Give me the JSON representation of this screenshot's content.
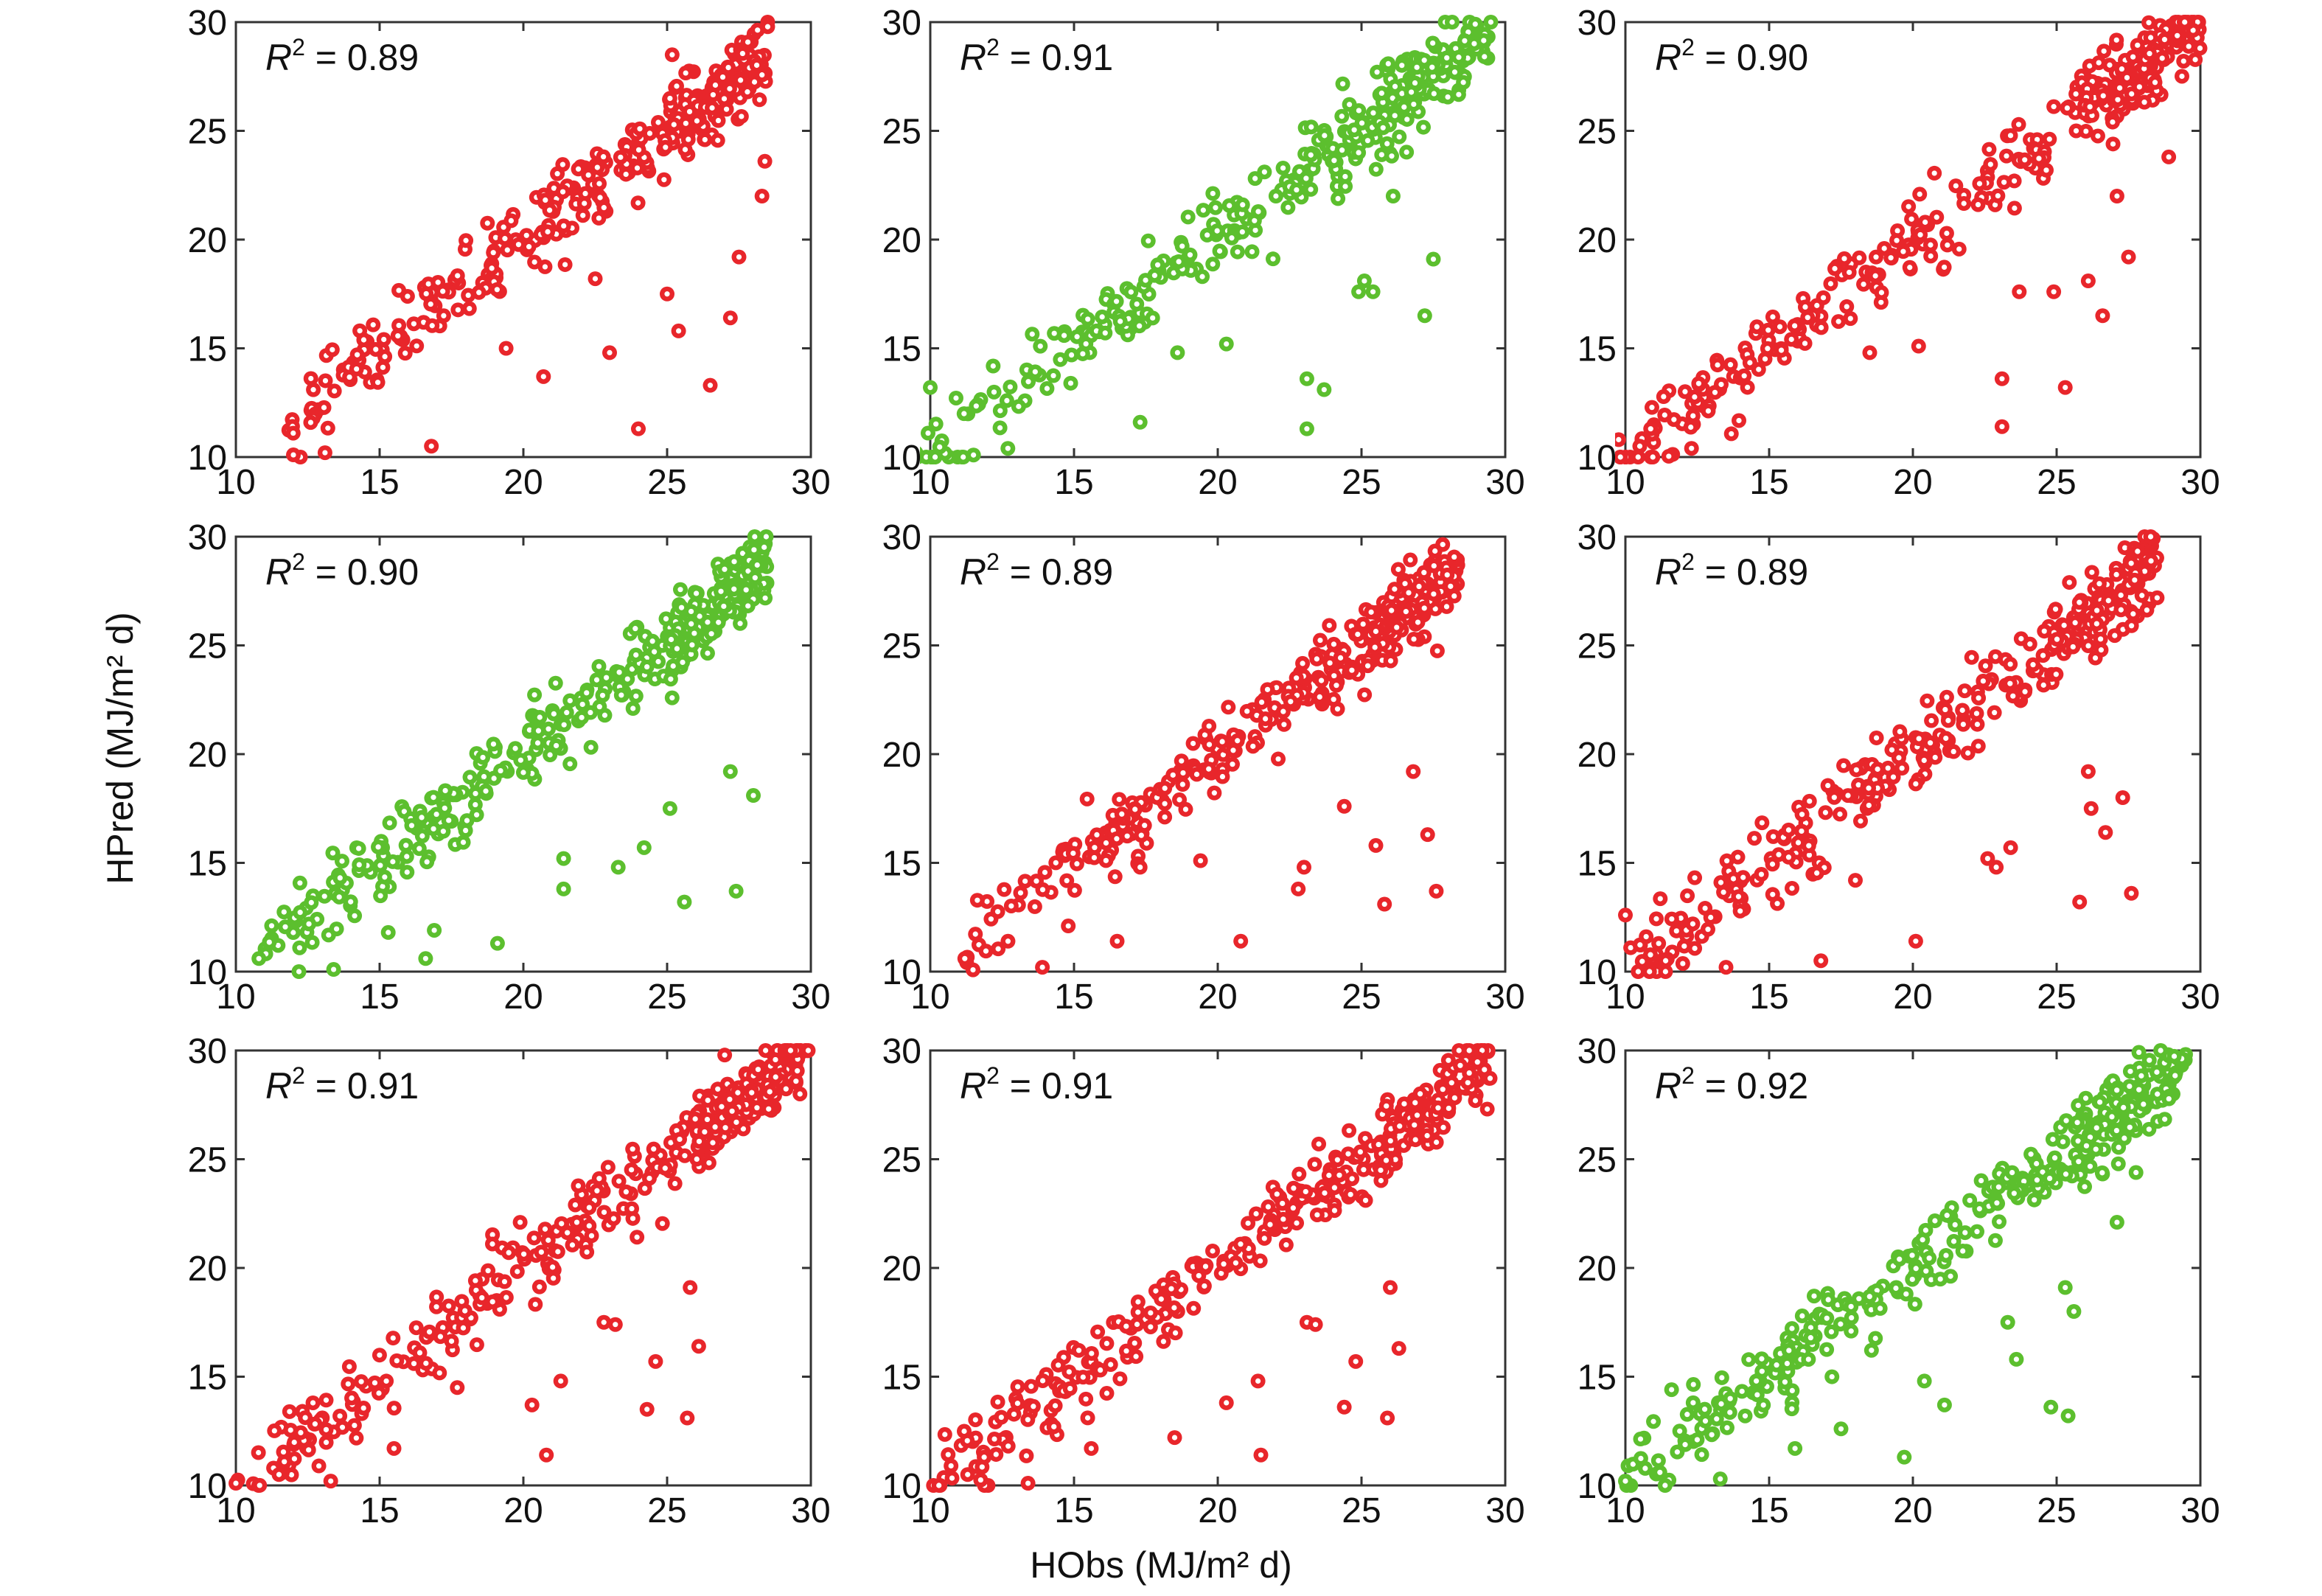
{
  "figure": {
    "xlabel": "HObs (MJ/m² d)",
    "ylabel": "HPred (MJ/m² d)",
    "r2_prefix": "R",
    "r2_sup": "2",
    "r2_eq": " = "
  },
  "colors": {
    "red": "#e8262b",
    "green": "#5cbf2e"
  },
  "chart_data": [
    {
      "type": "scatter",
      "row": 0,
      "col": 0,
      "r2": "0.89",
      "color": "red",
      "xlim": [
        10,
        30
      ],
      "ylim": [
        10,
        30
      ],
      "xticks": [
        10,
        15,
        20,
        25,
        30
      ],
      "yticks": [
        10,
        15,
        20,
        25,
        30
      ],
      "xticklabels": [
        "10",
        "15",
        "20",
        "25",
        "30"
      ],
      "yticklabels": [
        "10",
        "15",
        "20",
        "25",
        "30"
      ],
      "x_range": [
        11.5,
        28.5
      ],
      "outliers": [
        [
          24,
          11.3
        ],
        [
          23,
          14.8
        ],
        [
          26.5,
          13.3
        ],
        [
          25,
          17.5
        ],
        [
          27.5,
          19.2
        ],
        [
          28.4,
          23.6
        ],
        [
          28.3,
          22
        ],
        [
          27.2,
          16.4
        ],
        [
          25.4,
          15.8
        ],
        [
          22.5,
          18.2
        ],
        [
          20.7,
          13.7
        ],
        [
          19.4,
          15
        ],
        [
          16.8,
          10.5
        ],
        [
          12,
          10.1
        ],
        [
          13.1,
          10.2
        ]
      ],
      "seed": 11
    },
    {
      "type": "scatter",
      "row": 0,
      "col": 1,
      "r2": "0.91",
      "color": "green",
      "xlim": [
        10,
        30
      ],
      "ylim": [
        10,
        30
      ],
      "xticks": [
        10,
        15,
        20,
        25,
        30
      ],
      "yticks": [
        10,
        15,
        20,
        25,
        30
      ],
      "xticklabels": [
        "10",
        "15",
        "20",
        "25",
        "30"
      ],
      "yticklabels": [
        "10",
        "15",
        "20",
        "25",
        "30"
      ],
      "x_range": [
        9.5,
        29.5
      ],
      "outliers": [
        [
          9.5,
          10.2
        ],
        [
          10,
          13.2
        ],
        [
          12.7,
          10.4
        ],
        [
          23.1,
          11.3
        ],
        [
          23.7,
          13.1
        ],
        [
          23.1,
          13.6
        ],
        [
          25.4,
          17.6
        ],
        [
          25.1,
          18.1
        ],
        [
          27.2,
          16.5
        ],
        [
          27.5,
          19.1
        ],
        [
          26.1,
          22
        ],
        [
          24.9,
          17.6
        ],
        [
          20.3,
          15.2
        ],
        [
          18.6,
          14.8
        ],
        [
          17.3,
          11.6
        ]
      ],
      "seed": 23
    },
    {
      "type": "scatter",
      "row": 0,
      "col": 2,
      "r2": "0.90",
      "color": "red",
      "xlim": [
        10,
        30
      ],
      "ylim": [
        10,
        30
      ],
      "xticks": [
        10,
        15,
        20,
        25,
        30
      ],
      "yticks": [
        10,
        15,
        20,
        25,
        30
      ],
      "xticklabels": [
        "10",
        "15",
        "20",
        "25",
        "30"
      ],
      "yticklabels": [
        "10",
        "15",
        "20",
        "25",
        "30"
      ],
      "x_range": [
        8.5,
        30
      ],
      "outliers": [
        [
          8.5,
          10.2
        ],
        [
          10.5,
          10.5
        ],
        [
          12.3,
          10.4
        ],
        [
          23.1,
          11.4
        ],
        [
          23.1,
          13.6
        ],
        [
          25.3,
          13.2
        ],
        [
          26.6,
          16.5
        ],
        [
          27.5,
          19.2
        ],
        [
          23.7,
          17.6
        ],
        [
          24.9,
          17.6
        ],
        [
          26.1,
          18.1
        ],
        [
          27.1,
          22
        ],
        [
          28.9,
          23.8
        ],
        [
          20.2,
          15.1
        ],
        [
          18.5,
          14.8
        ]
      ],
      "seed": 37
    },
    {
      "type": "scatter",
      "row": 1,
      "col": 0,
      "r2": "0.90",
      "color": "green",
      "xlim": [
        10,
        30
      ],
      "ylim": [
        10,
        30
      ],
      "xticks": [
        10,
        15,
        20,
        25,
        30
      ],
      "yticks": [
        10,
        15,
        20,
        25,
        30
      ],
      "xticklabels": [
        "10",
        "15",
        "20",
        "25",
        "30"
      ],
      "yticklabels": [
        "10",
        "15",
        "20",
        "25",
        "30"
      ],
      "x_range": [
        10.8,
        28.5
      ],
      "outliers": [
        [
          13.4,
          10.1
        ],
        [
          10.8,
          10.6
        ],
        [
          15.3,
          11.8
        ],
        [
          16.6,
          10.6
        ],
        [
          16.9,
          11.9
        ],
        [
          19.1,
          11.3
        ],
        [
          21.4,
          13.8
        ],
        [
          25.6,
          13.2
        ],
        [
          27.4,
          13.7
        ],
        [
          24.2,
          15.7
        ],
        [
          23.3,
          14.8
        ],
        [
          25.1,
          17.5
        ],
        [
          27.2,
          19.2
        ],
        [
          28,
          18.1
        ],
        [
          21.4,
          15.2
        ]
      ],
      "seed": 41
    },
    {
      "type": "scatter",
      "row": 1,
      "col": 1,
      "r2": "0.89",
      "color": "red",
      "xlim": [
        10,
        30
      ],
      "ylim": [
        10,
        30
      ],
      "xticks": [
        10,
        15,
        20,
        25,
        30
      ],
      "yticks": [
        10,
        15,
        20,
        25,
        30
      ],
      "xticklabels": [
        "10",
        "15",
        "20",
        "25",
        "30"
      ],
      "yticklabels": [
        "10",
        "15",
        "20",
        "25",
        "30"
      ],
      "x_range": [
        11,
        28.5
      ],
      "outliers": [
        [
          11.2,
          10.6
        ],
        [
          13.9,
          10.2
        ],
        [
          16.5,
          11.4
        ],
        [
          20.8,
          11.4
        ],
        [
          24.4,
          17.6
        ],
        [
          25.5,
          15.8
        ],
        [
          25.8,
          13.1
        ],
        [
          26.8,
          19.2
        ],
        [
          27.3,
          16.3
        ],
        [
          27.6,
          13.7
        ],
        [
          22.8,
          13.8
        ],
        [
          23,
          14.8
        ],
        [
          19.4,
          15.1
        ],
        [
          17.3,
          14.8
        ],
        [
          14.8,
          12.1
        ]
      ],
      "seed": 53
    },
    {
      "type": "scatter",
      "row": 1,
      "col": 2,
      "r2": "0.89",
      "color": "red",
      "xlim": [
        10,
        30
      ],
      "ylim": [
        10,
        30
      ],
      "xticks": [
        10,
        15,
        20,
        25,
        30
      ],
      "yticks": [
        10,
        15,
        20,
        25,
        30
      ],
      "xticklabels": [
        "10",
        "15",
        "20",
        "25",
        "30"
      ],
      "yticklabels": [
        "10",
        "15",
        "20",
        "25",
        "30"
      ],
      "x_range": [
        10,
        28.5
      ],
      "outliers": [
        [
          10,
          12.6
        ],
        [
          11.4,
          10.5
        ],
        [
          13.5,
          10.2
        ],
        [
          16.8,
          10.5
        ],
        [
          20.1,
          11.4
        ],
        [
          22.6,
          15.2
        ],
        [
          23.4,
          15.7
        ],
        [
          25.8,
          13.2
        ],
        [
          26.2,
          17.5
        ],
        [
          26.7,
          16.4
        ],
        [
          27.3,
          18
        ],
        [
          27.6,
          13.6
        ],
        [
          26.1,
          19.2
        ],
        [
          22.9,
          14.8
        ],
        [
          18,
          14.2
        ]
      ],
      "seed": 67
    },
    {
      "type": "scatter",
      "row": 2,
      "col": 0,
      "r2": "0.91",
      "color": "red",
      "xlim": [
        10,
        30
      ],
      "ylim": [
        10,
        30
      ],
      "xticks": [
        10,
        15,
        20,
        25,
        30
      ],
      "yticks": [
        10,
        15,
        20,
        25,
        30
      ],
      "xticklabels": [
        "10",
        "15",
        "20",
        "25",
        "30"
      ],
      "yticklabels": [
        "10",
        "15",
        "20",
        "25",
        "30"
      ],
      "x_range": [
        10,
        30
      ],
      "outliers": [
        [
          10,
          10.1
        ],
        [
          11.5,
          10.5
        ],
        [
          13.3,
          10.2
        ],
        [
          20.8,
          11.4
        ],
        [
          22.8,
          17.5
        ],
        [
          23.2,
          17.4
        ],
        [
          24.3,
          13.5
        ],
        [
          24.6,
          15.7
        ],
        [
          25.7,
          13.1
        ],
        [
          25.8,
          19.1
        ],
        [
          26.1,
          16.4
        ],
        [
          21.3,
          14.8
        ],
        [
          20.3,
          13.7
        ],
        [
          17.7,
          14.5
        ],
        [
          15.5,
          11.7
        ]
      ],
      "seed": 79
    },
    {
      "type": "scatter",
      "row": 2,
      "col": 1,
      "r2": "0.91",
      "color": "red",
      "xlim": [
        10,
        30
      ],
      "ylim": [
        10,
        30
      ],
      "xticks": [
        10,
        15,
        20,
        25,
        30
      ],
      "yticks": [
        10,
        15,
        20,
        25,
        30
      ],
      "xticklabels": [
        "10",
        "15",
        "20",
        "25",
        "30"
      ],
      "yticklabels": [
        "10",
        "15",
        "20",
        "25",
        "30"
      ],
      "x_range": [
        10,
        29.5
      ],
      "outliers": [
        [
          11.3,
          10.5
        ],
        [
          13.4,
          10.1
        ],
        [
          21.5,
          11.4
        ],
        [
          23.1,
          17.5
        ],
        [
          23.4,
          17.4
        ],
        [
          24.4,
          13.6
        ],
        [
          24.8,
          15.7
        ],
        [
          25.9,
          13.1
        ],
        [
          26,
          19.1
        ],
        [
          26.3,
          16.3
        ],
        [
          21.4,
          14.8
        ],
        [
          20.3,
          13.8
        ],
        [
          18.5,
          12.2
        ],
        [
          15.6,
          11.7
        ],
        [
          14.3,
          12.7
        ]
      ],
      "seed": 97
    },
    {
      "type": "scatter",
      "row": 2,
      "col": 2,
      "r2": "0.92",
      "color": "green",
      "xlim": [
        10,
        30
      ],
      "ylim": [
        10,
        30
      ],
      "xticks": [
        10,
        15,
        20,
        25,
        30
      ],
      "yticks": [
        10,
        15,
        20,
        25,
        30
      ],
      "xticklabels": [
        "10",
        "15",
        "20",
        "25",
        "30"
      ],
      "yticklabels": [
        "10",
        "15",
        "20",
        "25",
        "30"
      ],
      "x_range": [
        10,
        29.5
      ],
      "outliers": [
        [
          10,
          10.2
        ],
        [
          11.2,
          10.6
        ],
        [
          13.3,
          10.3
        ],
        [
          19.7,
          11.3
        ],
        [
          21.1,
          13.7
        ],
        [
          23.3,
          17.5
        ],
        [
          23.6,
          15.8
        ],
        [
          24.8,
          13.6
        ],
        [
          25.3,
          19.1
        ],
        [
          25.6,
          18
        ],
        [
          25.4,
          13.2
        ],
        [
          27.1,
          22.1
        ],
        [
          20.4,
          14.8
        ],
        [
          17.5,
          12.6
        ],
        [
          15.9,
          11.7
        ]
      ],
      "seed": 113
    }
  ]
}
